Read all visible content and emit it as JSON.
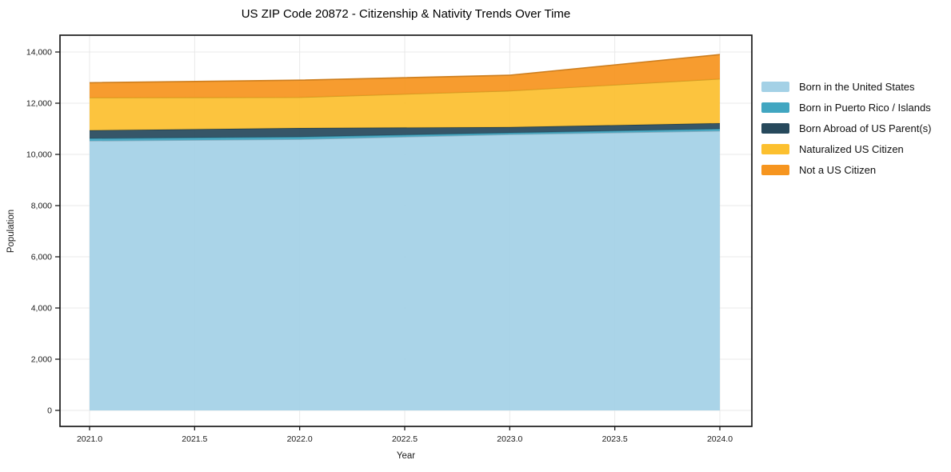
{
  "title": "US ZIP Code 20872 - Citizenship & Nativity Trends Over Time",
  "axes": {
    "x_label": "Year",
    "y_label": "Population",
    "x_ticks": [
      "2021.0",
      "2021.5",
      "2022.0",
      "2022.5",
      "2023.0",
      "2023.5",
      "2024.0"
    ],
    "y_ticks": [
      "0",
      "2,000",
      "4,000",
      "6,000",
      "8,000",
      "10,000",
      "12,000",
      "14,000"
    ]
  },
  "colors": {
    "grid": "#e9e9e9",
    "spine": "#1b1b1b",
    "tick_text": "#1a1a1a"
  },
  "chart_data": {
    "type": "area",
    "stacked": true,
    "title": "US ZIP Code 20872 - Citizenship & Nativity Trends Over Time",
    "xlabel": "Year",
    "ylabel": "Population",
    "x": [
      2021,
      2022,
      2023,
      2024
    ],
    "series": [
      {
        "name": "Born in the United States",
        "color": "#a4d1e6",
        "values": [
          10530,
          10590,
          10780,
          10920
        ]
      },
      {
        "name": "Born in Puerto Rico / Islands",
        "color": "#41a6c1",
        "values": [
          95,
          95,
          65,
          80
        ]
      },
      {
        "name": "Born Abroad of US Parent(s)",
        "color": "#27495c",
        "values": [
          315,
          345,
          220,
          220
        ]
      },
      {
        "name": "Naturalized US Citizen",
        "color": "#fcc02f",
        "values": [
          1280,
          1200,
          1420,
          1730
        ]
      },
      {
        "name": "Not a US Citizen",
        "color": "#f6951f",
        "values": [
          580,
          670,
          610,
          950
        ]
      }
    ],
    "x_tick_values": [
      2021.0,
      2021.5,
      2022.0,
      2022.5,
      2023.0,
      2023.5,
      2024.0
    ],
    "y_tick_values": [
      0,
      2000,
      4000,
      6000,
      8000,
      10000,
      12000,
      14000
    ],
    "ylim": [
      0,
      14000
    ],
    "grid": true,
    "legend_position": "right"
  }
}
